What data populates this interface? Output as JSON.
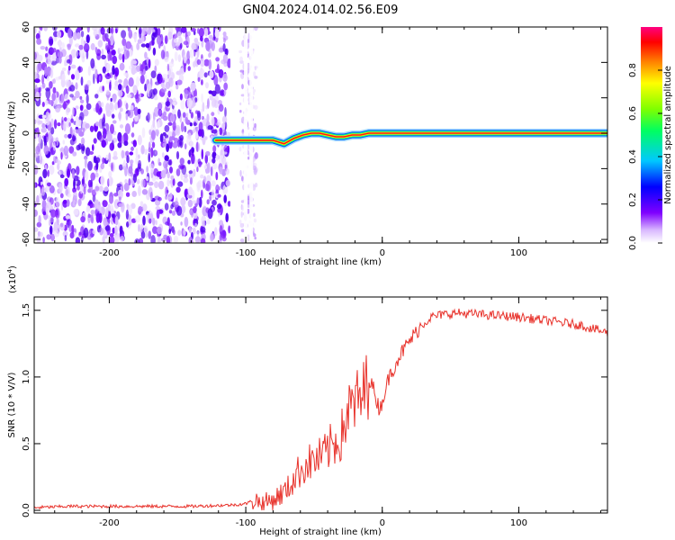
{
  "title": "GN04.2024.014.02.56.E09",
  "chart_data": [
    {
      "type": "heatmap",
      "xlabel": "Height of straight line (km)",
      "ylabel": "Frequency (Hz)",
      "xlim": [
        -255,
        165
      ],
      "ylim": [
        -62,
        60
      ],
      "xticks": [
        -200,
        -100,
        0,
        100
      ],
      "yticks": [
        -60,
        -40,
        -20,
        0,
        20,
        40,
        60
      ],
      "noise_region_x": [
        -255,
        -100
      ],
      "signal_track": {
        "x": [
          -122,
          -110,
          -100,
          -90,
          -80,
          -72,
          -65,
          -58,
          -52,
          -46,
          -40,
          -34,
          -28,
          -22,
          -16,
          -10,
          0,
          20,
          60,
          100,
          165
        ],
        "y": [
          -4,
          -4,
          -4,
          -4,
          -4,
          -6,
          -3,
          -1,
          0,
          0,
          -1,
          -2,
          -2,
          -1,
          -1,
          0,
          0,
          0,
          0,
          0,
          0
        ]
      },
      "colorbar": {
        "label": "Normalized spectral amplitude",
        "ticks": [
          0.0,
          0.2,
          0.4,
          0.6,
          0.8
        ],
        "range": [
          0,
          1
        ],
        "colormap": "rainbow (white → violet → blue → cyan → green → yellow → orange → red → magenta)"
      }
    },
    {
      "type": "line",
      "xlabel": "Height of straight line (km)",
      "ylabel": "SNR (10 * V/V)",
      "y_scale_label": "(x10",
      "y_scale_exp": "4",
      "xlim": [
        -255,
        165
      ],
      "ylim": [
        -0.02,
        1.6
      ],
      "xticks": [
        -200,
        -100,
        0,
        100
      ],
      "yticks": [
        0.0,
        0.5,
        1.0,
        1.5
      ],
      "line_color": "#e8332c",
      "series": [
        {
          "x": [
            -255,
            -230,
            -200,
            -170,
            -140,
            -110,
            -100,
            -93,
            -88,
            -80,
            -70,
            -62,
            -55,
            -48,
            -42,
            -36,
            -30,
            -26,
            -20,
            -14,
            -10,
            -6,
            -2,
            5,
            12,
            20,
            28,
            36,
            45,
            55,
            70,
            85,
            100,
            115,
            130,
            145,
            155,
            165
          ],
          "y": [
            0.02,
            0.03,
            0.03,
            0.03,
            0.03,
            0.04,
            0.05,
            0.08,
            0.05,
            0.08,
            0.15,
            0.28,
            0.35,
            0.38,
            0.42,
            0.5,
            0.55,
            0.72,
            0.8,
            0.85,
            1.0,
            0.9,
            0.75,
            1.0,
            1.15,
            1.27,
            1.38,
            1.45,
            1.47,
            1.48,
            1.47,
            1.46,
            1.45,
            1.43,
            1.41,
            1.39,
            1.36,
            1.33
          ]
        }
      ]
    }
  ]
}
